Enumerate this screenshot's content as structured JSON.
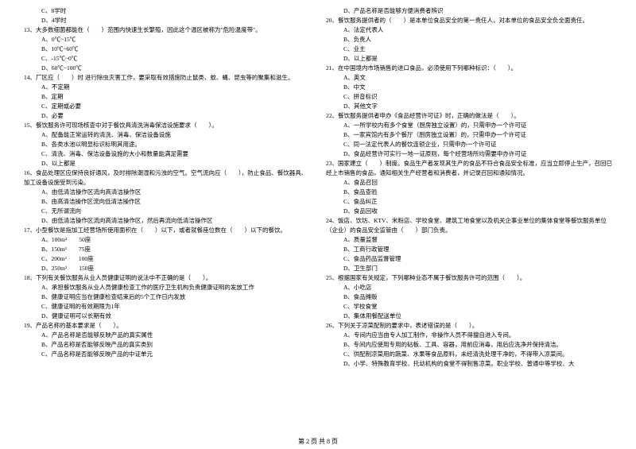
{
  "left": {
    "q12opts": [
      "C、8学时",
      "D、4学时"
    ],
    "q13": "13、大多数细菌都能在（　　）范围内快速生长繁殖，因此这个温区被称为\"危险温度带\"。",
    "q13opts": [
      "A、0℃~15℃",
      "B、10℃~60℃",
      "C、-15℃~0℃",
      "D、60℃~100℃"
    ],
    "q14": "14、厂区应（　　）时 进行除虫灭害工作，要采取有效措施防止鼠类、蚊、蝇、昆虫等的聚集和滋生。",
    "q14opts": [
      "A、不定期",
      "B、定期",
      "C、定期或必要",
      "D、必要"
    ],
    "q15": "15、餐饮服务许可现场核查中对于餐饮具清洗消毒保洁设施要求（　　）。",
    "q15opts": [
      "A、配备能正常运转的清洗、消毒、保洁设备设施",
      "B、各类水池以明显标识标明其用途。",
      "C、清洗、消毒、保洁设备设施的大小和数量能满足需要",
      "D、以上都是"
    ],
    "q16": "16、食品处理区应保持良好通风，及时排除潮湿和污浊的空气。空气流向应（　　），防止食品、餐饮器具、加工设备设施受到污染。",
    "q16opts": [
      "A、由低清洁操作区流向高清洁操作区",
      "B、由高清洁操作区流向低清洁操作区",
      "C、无所谓流向",
      "D、由低清洁操作区流向高清洁操作区，然后再流向低清洁操作区"
    ],
    "q17": "17、小型餐饮是指加工经营场所使用面积在（　　）以下，或者就餐座位数在（　　）以下的餐饮。",
    "q17opts": [
      "A、100m²　　50座",
      "B、150m²　　75座",
      "C、200m²　　100座",
      "D、250m²　　150座"
    ],
    "q18": "18、下列有关餐饮服务从业人员健康证明的说法中不正确的是（　　）。",
    "q18opts": [
      "A、承担餐饮服务从业人员健康检查工作的医疗卫生机构负责健康证明的发放工作",
      "B、健康证明应当在健康检查结束后的5个工作日内发放",
      "C、健康证明的有效期限为1年",
      "D、健康证明可以长期有效"
    ],
    "q19": "19、产品名称的基本要求是（　　）。",
    "q19opts": [
      "A、产品名称是否能够反映产品的真实属性",
      "B、产品名称是否能够反映产品的真实类别",
      "C、产品名称是否能够反映产品的中证单元"
    ]
  },
  "right": {
    "q19d": "D、产品名称是否能够方便消费者辨识",
    "q20": "20、餐饮服务提供者的（　　）是本单位食品安全的第一责任人，对本单位的食品安全负全面责任。",
    "q20opts": [
      "A、法定代表人",
      "B、负责人",
      "C、业主",
      "D、以上都是"
    ],
    "q21": "21、在中国境内市场销售的进口食品，必须使用下列哪种标识：（　　）。",
    "q21opts": [
      "A、英文",
      "B、中文",
      "C、拼音标识",
      "D、其他文字"
    ],
    "q22": "22、餐饮服务提供者申办《食品经营许可证》时，正确的做法是（　　）。",
    "q22opts": [
      "A、一所学校内有多个食堂（厨房独立设置）的，只需申办一个许可证",
      "B、一家宾馆内有多个餐厅（厨房独立设置）的，只需申办一个许可证",
      "C、同一法定代表人的餐饮连锁企业，只需申办一个许可证",
      "D、食品经营许可实行一地一证原则，每个经营场所均需要申办许可证"
    ],
    "q23": "23、国家建立（　　）制度。食品生产者发现其生产的食品不符合食品安全标准，应当立即停止生产，召回已经上市销售的食品，通知相关生产经营者和消费者，并记录召回和通知情况。",
    "q23opts": [
      "A、食品召回",
      "B、食品查验",
      "C、食品纠正",
      "D、食品回收"
    ],
    "q24": "24、饭店、饮坊、KTV、米粉店、学校食堂、建筑工地食堂以及机关企事业单位的集体食堂等餐饮服务单位（企业）的食品安全监管由（　　）部门负责。",
    "q24opts": [
      "A、质量监督",
      "B、工商行政管理",
      "C、食品药品监督管理",
      "D、卫生部门"
    ],
    "q25": "25、根据国家有关规定，下列哪种业态不属于餐饮服务许可的范围（　　）。",
    "q25opts": [
      "A、小吃店",
      "B、食品摊贩",
      "C、学校食堂",
      "D、集体用餐配送单位"
    ],
    "q26": "26、下列关于凉菜配制的要求中，表述错误的是（　　）。",
    "q26opts": [
      "A、专间内应当由专人加工制作，非操作人员不得擅自进入专间。",
      "B、专间内应使用专用的砧板、工具、容器，用前应消毒，用后应洗净并保持清洁。",
      "C、供配制凉菜用的蔬菜、水果等食品原料，未经清洗处理干净的，不得带入凉菜间。",
      "D、小学、特殊教育学校、托幼机构的食堂不得制售凉菜。职业学校、普通中等学校、大"
    ]
  },
  "footer": "第 2 页 共 8 页"
}
